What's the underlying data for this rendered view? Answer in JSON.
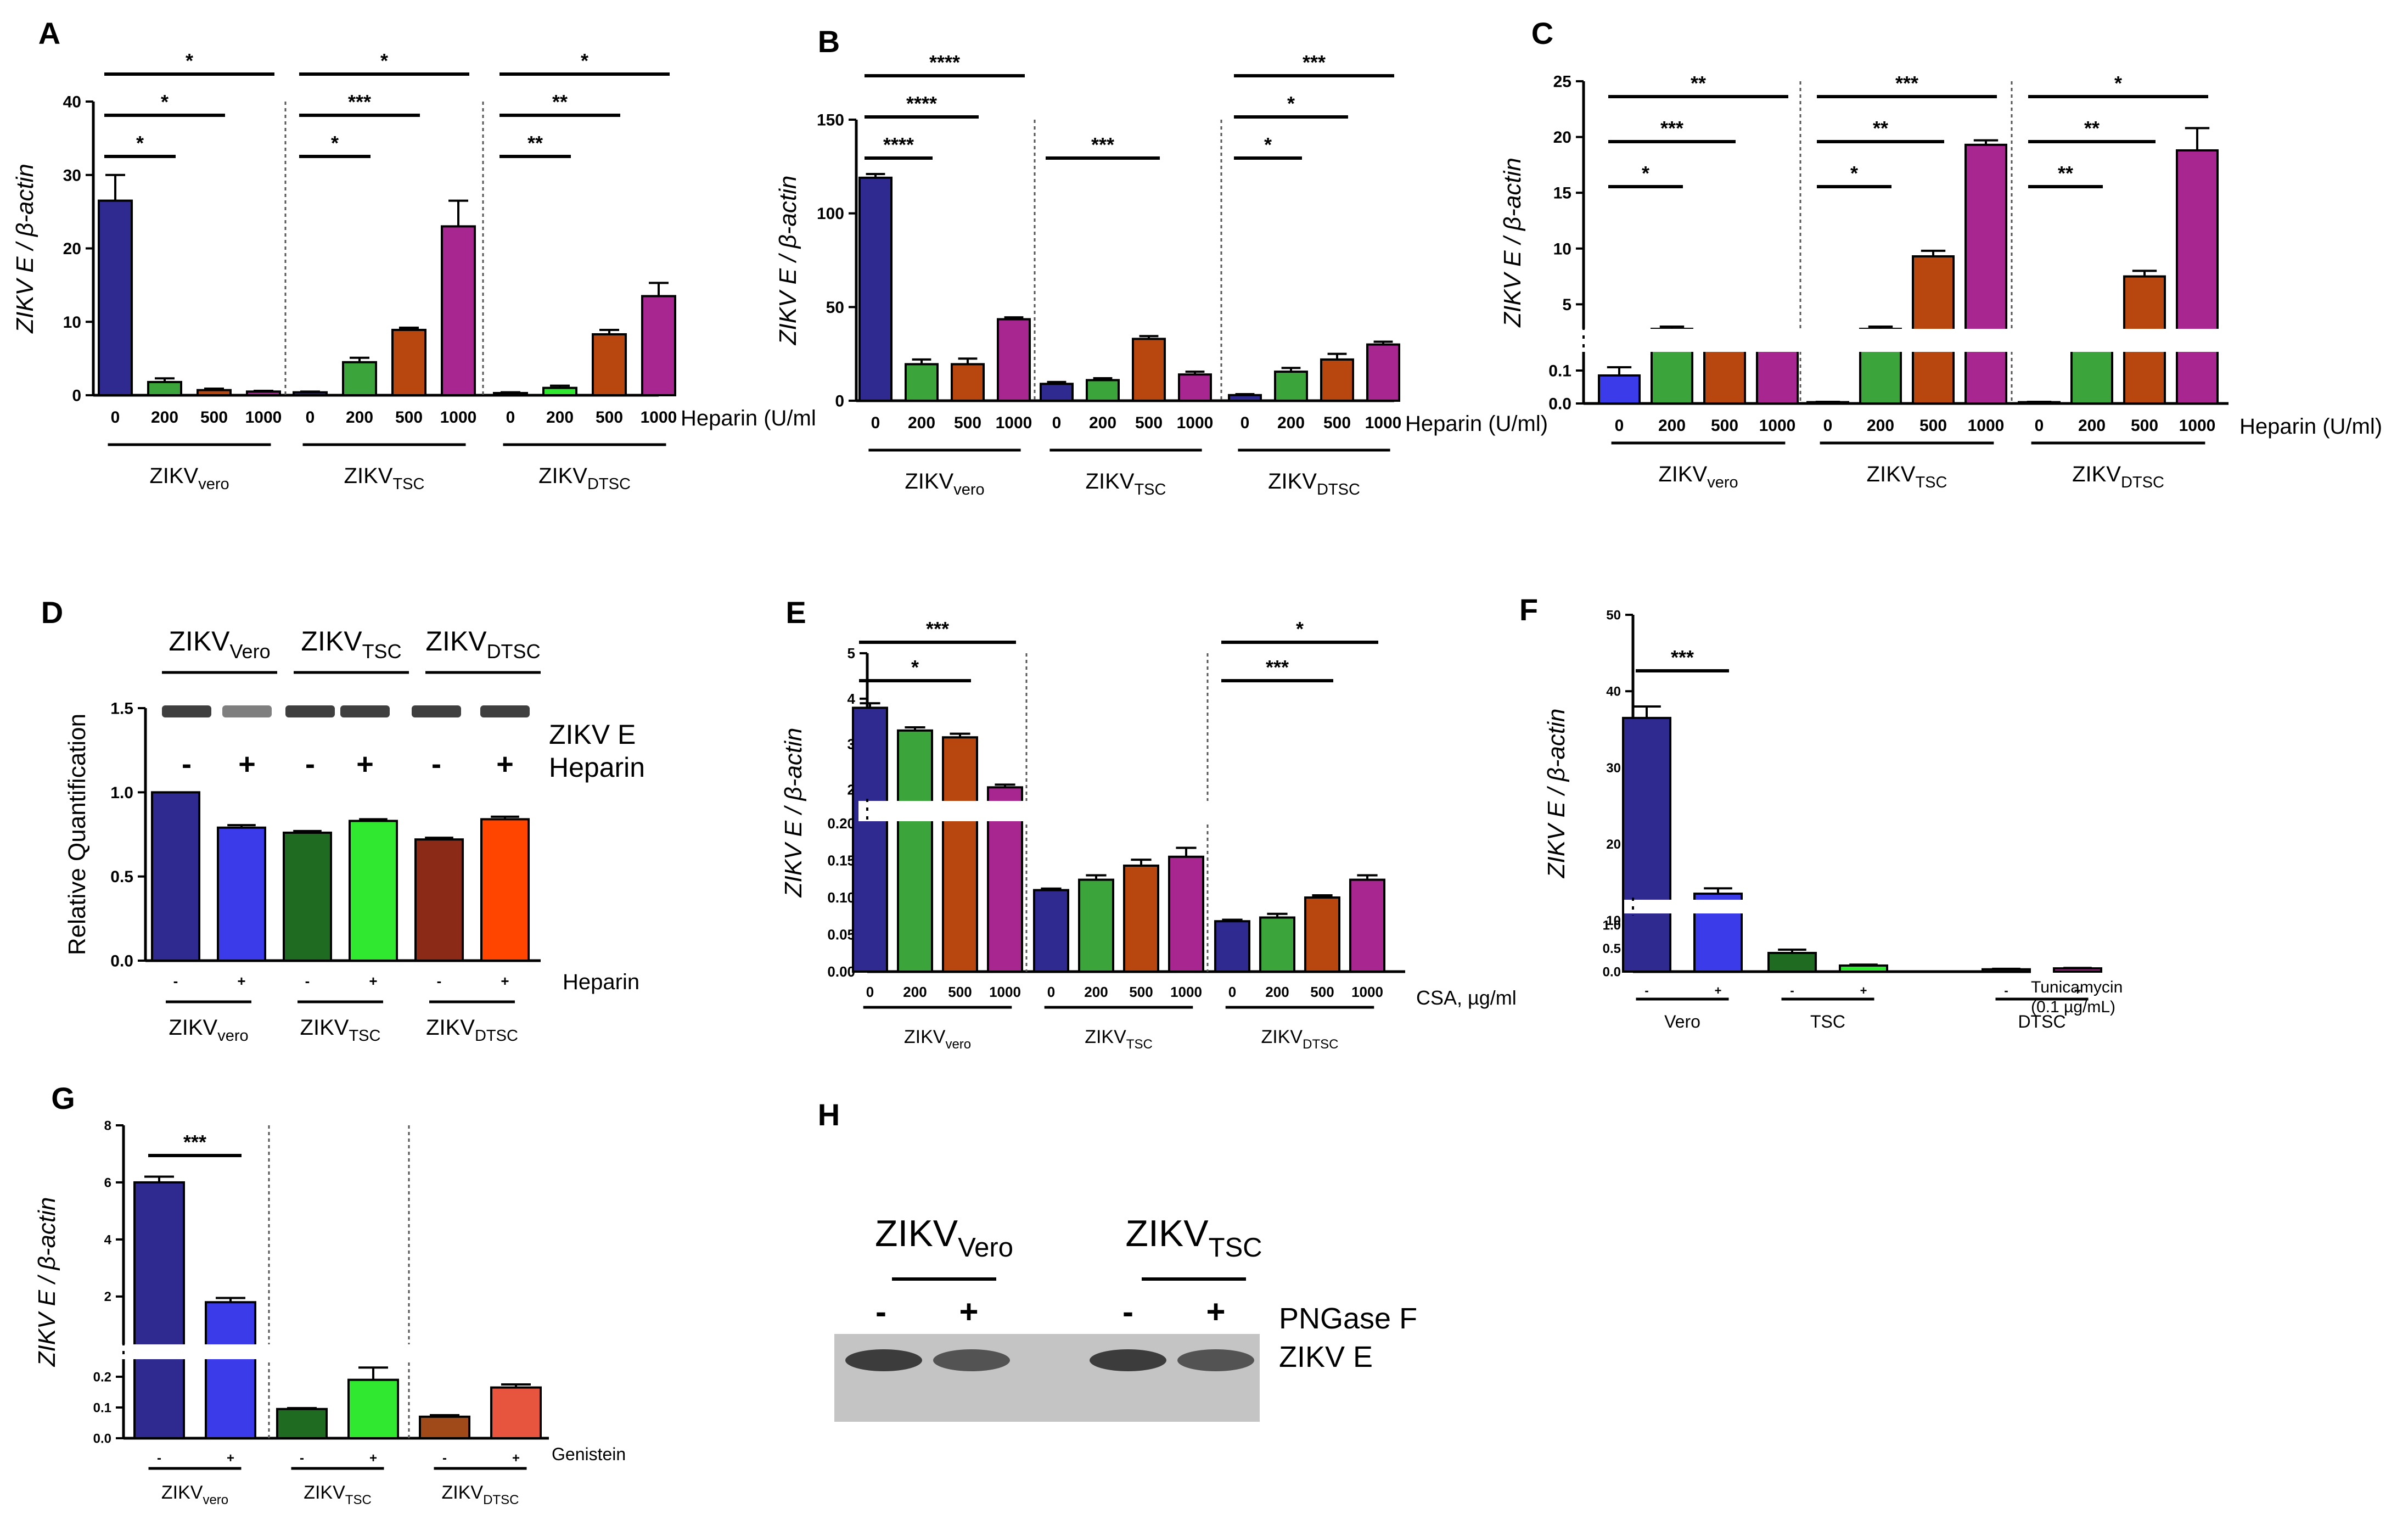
{
  "figure": {
    "panel_labels": [
      "A",
      "B",
      "C",
      "D",
      "E",
      "F",
      "G",
      "H"
    ],
    "colors": {
      "navy": "#2e2a8f",
      "blue": "#3b3bea",
      "green": "#3ba43b",
      "lime": "#2fe82f",
      "rust": "#b8470f",
      "magenta": "#a8268f",
      "dkgreen": "#1e6b21",
      "ltgreen": "#4fe64f",
      "dkred": "#8c2a18",
      "orange": "#ff4500",
      "salmon": "#e8553f",
      "brown": "#a04a1a",
      "axis": "#000000",
      "divider": "#555555"
    }
  },
  "chart_data": [
    {
      "panel": "A",
      "type": "bar",
      "ylabel": "ZIKV E / β-actin",
      "ylim": [
        0,
        40
      ],
      "yticks": [
        "0",
        "10",
        "20",
        "30",
        "40"
      ],
      "xnote": "Heparin (U/ml",
      "categories": [
        "0",
        "200",
        "500",
        "1000"
      ],
      "groups": [
        {
          "name": "ZIKV",
          "sub": "vero",
          "values": [
            26.5,
            1.8,
            0.7,
            0.5
          ],
          "errors": [
            3.5,
            0.5,
            0.2,
            0.1
          ],
          "colors": [
            "navy",
            "green",
            "rust",
            "magenta"
          ]
        },
        {
          "name": "ZIKV",
          "sub": "TSC",
          "values": [
            0.4,
            4.5,
            8.9,
            23.0
          ],
          "errors": [
            0.1,
            0.6,
            0.3,
            3.5
          ],
          "colors": [
            "navy",
            "green",
            "rust",
            "magenta"
          ]
        },
        {
          "name": "ZIKV",
          "sub": "DTSC",
          "values": [
            0.3,
            1.0,
            8.3,
            13.5
          ],
          "errors": [
            0.1,
            0.3,
            0.6,
            1.8
          ],
          "colors": [
            "navy",
            "lime",
            "rust",
            "magenta"
          ]
        }
      ],
      "sig": [
        {
          "g": 0,
          "from": 0,
          "to": 1,
          "label": "*",
          "level": 0
        },
        {
          "g": 0,
          "from": 0,
          "to": 2,
          "label": "*",
          "level": 1
        },
        {
          "g": 0,
          "from": 0,
          "to": 3,
          "label": "*",
          "level": 2
        },
        {
          "g": 1,
          "from": 0,
          "to": 1,
          "label": "*",
          "level": 0
        },
        {
          "g": 1,
          "from": 0,
          "to": 2,
          "label": "***",
          "level": 1
        },
        {
          "g": 1,
          "from": 0,
          "to": 3,
          "label": "*",
          "level": 2
        },
        {
          "g": 2,
          "from": 0,
          "to": 1,
          "label": "**",
          "level": 0
        },
        {
          "g": 2,
          "from": 0,
          "to": 2,
          "label": "**",
          "level": 1
        },
        {
          "g": 2,
          "from": 0,
          "to": 3,
          "label": "*",
          "level": 2
        }
      ]
    },
    {
      "panel": "B",
      "type": "bar",
      "ylabel": "ZIKV E / β-actin",
      "ylim": [
        0,
        150
      ],
      "yticks": [
        "0",
        "50",
        "100",
        "150"
      ],
      "xnote": "Heparin (U/ml)",
      "categories": [
        "0",
        "200",
        "500",
        "1000"
      ],
      "groups": [
        {
          "name": "ZIKV",
          "sub": "vero",
          "values": [
            119,
            19.5,
            19.5,
            43.5
          ],
          "errors": [
            2,
            2.5,
            3,
            1
          ],
          "colors": [
            "navy",
            "green",
            "rust",
            "magenta"
          ]
        },
        {
          "name": "ZIKV",
          "sub": "TSC",
          "values": [
            9,
            11,
            33,
            14
          ],
          "errors": [
            1,
            1,
            1.5,
            1.5
          ],
          "colors": [
            "navy",
            "green",
            "rust",
            "magenta"
          ]
        },
        {
          "name": "ZIKV",
          "sub": "DTSC",
          "values": [
            3,
            15.5,
            22,
            30
          ],
          "errors": [
            0.5,
            2,
            3,
            1.5
          ],
          "colors": [
            "navy",
            "green",
            "rust",
            "magenta"
          ]
        }
      ],
      "sig": [
        {
          "g": 0,
          "from": 0,
          "to": 1,
          "label": "****",
          "level": 0
        },
        {
          "g": 0,
          "from": 0,
          "to": 2,
          "label": "****",
          "level": 1
        },
        {
          "g": 0,
          "from": 0,
          "to": 3,
          "label": "****",
          "level": 2
        },
        {
          "g": 1,
          "from": 0,
          "to": 2,
          "label": "***",
          "level": 0
        },
        {
          "g": 2,
          "from": 0,
          "to": 1,
          "label": "*",
          "level": 0
        },
        {
          "g": 2,
          "from": 0,
          "to": 2,
          "label": "*",
          "level": 1
        },
        {
          "g": 2,
          "from": 0,
          "to": 3,
          "label": "***",
          "level": 2
        }
      ]
    },
    {
      "panel": "C",
      "type": "bar",
      "ylabel": "ZIKV E / β-actin",
      "upper_range": [
        3,
        25
      ],
      "upper_ticks": [
        "5",
        "10",
        "15",
        "20",
        "25"
      ],
      "lower_range": [
        0,
        0.15
      ],
      "lower_ticks": [
        "0.0",
        "0.1"
      ],
      "xnote": "Heparin (U/ml)",
      "categories": [
        "0",
        "200",
        "500",
        "1000"
      ],
      "groups": [
        {
          "name": "ZIKV",
          "sub": "vero",
          "values": [
            0.085,
            2.8,
            2.5,
            2.4
          ],
          "errors": [
            0.025,
            0.2,
            0.15,
            0.15
          ],
          "colors": [
            "blue",
            "green",
            "rust",
            "magenta"
          ]
        },
        {
          "name": "ZIKV",
          "sub": "TSC",
          "values": [
            0.004,
            2.8,
            9.3,
            19.3
          ],
          "errors": [
            0.001,
            0.2,
            0.5,
            0.4
          ],
          "colors": [
            "navy",
            "green",
            "rust",
            "magenta"
          ]
        },
        {
          "name": "ZIKV",
          "sub": "DTSC",
          "values": [
            0.004,
            2.2,
            7.5,
            18.8
          ],
          "errors": [
            0.001,
            0.1,
            0.5,
            2.0
          ],
          "colors": [
            "navy",
            "green",
            "rust",
            "magenta"
          ]
        }
      ],
      "sig": [
        {
          "g": 0,
          "from": 0,
          "to": 1,
          "label": "*",
          "level": 0
        },
        {
          "g": 0,
          "from": 0,
          "to": 2,
          "label": "***",
          "level": 1
        },
        {
          "g": 0,
          "from": 0,
          "to": 3,
          "label": "**",
          "level": 2
        },
        {
          "g": 1,
          "from": 0,
          "to": 1,
          "label": "*",
          "level": 0
        },
        {
          "g": 1,
          "from": 0,
          "to": 2,
          "label": "**",
          "level": 1
        },
        {
          "g": 1,
          "from": 0,
          "to": 3,
          "label": "***",
          "level": 2
        },
        {
          "g": 2,
          "from": 0,
          "to": 1,
          "label": "**",
          "level": 0
        },
        {
          "g": 2,
          "from": 0,
          "to": 2,
          "label": "**",
          "level": 1
        },
        {
          "g": 2,
          "from": 0,
          "to": 3,
          "label": "*",
          "level": 2
        }
      ]
    },
    {
      "panel": "D",
      "type": "bar",
      "ylabel": "Relative Quantification",
      "ylim": [
        0,
        1.5
      ],
      "yticks": [
        "0.0",
        "0.5",
        "1.0",
        "1.5"
      ],
      "xnote": "Heparin",
      "categories": [
        "-",
        "+"
      ],
      "groups": [
        {
          "name": "ZIKV",
          "sub": "vero",
          "header_sub": "Vero",
          "values": [
            1.0,
            0.79
          ],
          "errors": [
            0.0,
            0.015
          ],
          "colors": [
            "navy",
            "blue"
          ]
        },
        {
          "name": "ZIKV",
          "sub": "TSC",
          "header_sub": "TSC",
          "values": [
            0.76,
            0.83
          ],
          "errors": [
            0.01,
            0.01
          ],
          "colors": [
            "dkgreen",
            "lime"
          ]
        },
        {
          "name": "ZIKV",
          "sub": "DTSC",
          "header_sub": "DTSC",
          "values": [
            0.72,
            0.84
          ],
          "errors": [
            0.01,
            0.015
          ],
          "colors": [
            "dkred",
            "orange"
          ]
        }
      ],
      "blot_labels": [
        "ZIKV E",
        "Heparin"
      ],
      "blot_signs": [
        "-",
        "+",
        "-",
        "+",
        "-",
        "+"
      ]
    },
    {
      "panel": "E",
      "type": "bar",
      "ylabel": "ZIKV E / β-actin",
      "upper_range": [
        1.8,
        5
      ],
      "upper_ticks": [
        "2",
        "3",
        "4",
        "5"
      ],
      "lower_range": [
        0,
        0.2
      ],
      "lower_ticks": [
        "0.00",
        "0.05",
        "0.10",
        "0.15",
        "0.20"
      ],
      "xnote": "CSA, µg/ml",
      "categories": [
        "0",
        "200",
        "500",
        "1000"
      ],
      "groups": [
        {
          "name": "ZIKV",
          "sub": "vero",
          "values": [
            3.8,
            3.3,
            3.15,
            2.05
          ],
          "errors": [
            0.1,
            0.07,
            0.08,
            0.06
          ],
          "colors": [
            "navy",
            "green",
            "rust",
            "magenta"
          ]
        },
        {
          "name": "ZIKV",
          "sub": "TSC",
          "values": [
            0.11,
            0.124,
            0.143,
            0.155
          ],
          "errors": [
            0.002,
            0.006,
            0.008,
            0.012
          ],
          "colors": [
            "navy",
            "green",
            "rust",
            "magenta"
          ]
        },
        {
          "name": "ZIKV",
          "sub": "DTSC",
          "values": [
            0.068,
            0.073,
            0.1,
            0.124
          ],
          "errors": [
            0.002,
            0.005,
            0.003,
            0.006
          ],
          "colors": [
            "navy",
            "green",
            "rust",
            "magenta"
          ]
        }
      ],
      "sig": [
        {
          "g": 0,
          "from": 0,
          "to": 2,
          "label": "*",
          "level": 0
        },
        {
          "g": 0,
          "from": 0,
          "to": 3,
          "label": "***",
          "level": 1
        },
        {
          "g": 2,
          "from": 0,
          "to": 2,
          "label": "***",
          "level": 0
        },
        {
          "g": 2,
          "from": 0,
          "to": 3,
          "label": "*",
          "level": 1
        }
      ]
    },
    {
      "panel": "F",
      "type": "bar",
      "ylabel": "ZIKV E / β-actin",
      "upper_range": [
        13,
        50
      ],
      "upper_ticks": [
        "10",
        "20",
        "30",
        "40",
        "50"
      ],
      "lower_range": [
        0,
        1.2
      ],
      "lower_ticks": [
        "0.0",
        "0.5",
        "1.0"
      ],
      "xnote": "Tunicamycin",
      "xnote2": "(0.1 µg/mL)",
      "categories": [
        "-",
        "+"
      ],
      "groups": [
        {
          "name": "Vero",
          "values": [
            36.5,
            13.5
          ],
          "errors": [
            1.5,
            0.7
          ],
          "colors": [
            "navy",
            "blue"
          ]
        },
        {
          "name": "TSC",
          "values": [
            0.4,
            0.13
          ],
          "errors": [
            0.07,
            0.02
          ],
          "colors": [
            "dkgreen",
            "lime"
          ]
        },
        {
          "name": "DTSC",
          "values": [
            0.05,
            0.07
          ],
          "errors": [
            0.01,
            0.01
          ],
          "colors": [
            "dkred",
            "magenta"
          ]
        }
      ],
      "sig": [
        {
          "g": 0,
          "from": 0,
          "to": 1,
          "label": "***",
          "level": 0
        }
      ]
    },
    {
      "panel": "G",
      "type": "bar",
      "ylabel": "ZIKV E / β-actin",
      "upper_range": [
        0.4,
        8
      ],
      "upper_ticks": [
        "2",
        "4",
        "6",
        "8"
      ],
      "lower_range": [
        0,
        0.25
      ],
      "lower_ticks": [
        "0.0",
        "0.1",
        "0.2"
      ],
      "xnote": "Genistein",
      "categories": [
        "-",
        "+"
      ],
      "groups": [
        {
          "name": "ZIKV",
          "sub": "vero",
          "values": [
            6.0,
            1.8
          ],
          "errors": [
            0.2,
            0.15
          ],
          "colors": [
            "navy",
            "blue"
          ]
        },
        {
          "name": "ZIKV",
          "sub": "TSC",
          "values": [
            0.095,
            0.19
          ],
          "errors": [
            0.003,
            0.04
          ],
          "colors": [
            "dkgreen",
            "lime"
          ]
        },
        {
          "name": "ZIKV",
          "sub": "DTSC",
          "values": [
            0.07,
            0.165
          ],
          "errors": [
            0.005,
            0.01
          ],
          "colors": [
            "brown",
            "salmon"
          ]
        }
      ],
      "sig": [
        {
          "g": 0,
          "from": 0,
          "to": 1,
          "label": "***",
          "level": 0
        }
      ]
    },
    {
      "panel": "H",
      "type": "blot",
      "groups": [
        {
          "name": "ZIKV",
          "sub": "Vero"
        },
        {
          "name": "ZIKV",
          "sub": "TSC"
        }
      ],
      "signs": [
        "-",
        "+",
        "-",
        "+"
      ],
      "labels": [
        "PNGase F",
        "ZIKV E"
      ]
    }
  ]
}
